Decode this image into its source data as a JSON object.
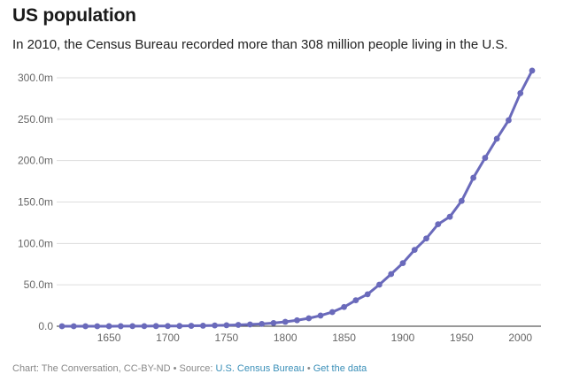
{
  "header": {
    "title": "US population",
    "subtitle": "In 2010, the Census Bureau recorded more than 308 million people living in the U.S."
  },
  "footer": {
    "chart_prefix": "Chart: The Conversation, CC-BY-ND",
    "source_prefix": "Source:",
    "source_link": "U.S. Census Bureau",
    "separator": "•",
    "data_link": "Get the data"
  },
  "colors": {
    "line": "#6a6abb",
    "grid": "#dddddd",
    "axis_text": "#666666",
    "link": "#3a8fb8"
  },
  "chart_data": {
    "type": "line",
    "title": "US population",
    "xlabel": "",
    "ylabel": "",
    "xlim": [
      1610,
      2010
    ],
    "ylim": [
      0,
      300
    ],
    "x_ticks": [
      1650,
      1700,
      1750,
      1800,
      1850,
      1900,
      1950,
      2000
    ],
    "y_ticks": [
      0,
      50,
      100,
      150,
      200,
      250,
      300
    ],
    "y_tick_labels": [
      "0.0",
      "50.0m",
      "100.0m",
      "150.0m",
      "200.0m",
      "250.0m",
      "300.0m"
    ],
    "grid": true,
    "legend": "none",
    "series": [
      {
        "x": [
          1610,
          1620,
          1630,
          1640,
          1650,
          1660,
          1670,
          1680,
          1690,
          1700,
          1710,
          1720,
          1730,
          1740,
          1750,
          1760,
          1770,
          1780,
          1790,
          1800,
          1810,
          1820,
          1830,
          1840,
          1850,
          1860,
          1870,
          1880,
          1890,
          1900,
          1910,
          1920,
          1930,
          1940,
          1950,
          1960,
          1970,
          1980,
          1990,
          2000,
          2010
        ],
        "values": [
          0.0004,
          0.002,
          0.005,
          0.027,
          0.05,
          0.075,
          0.112,
          0.152,
          0.21,
          0.25,
          0.33,
          0.47,
          0.63,
          0.91,
          1.17,
          1.59,
          2.15,
          2.78,
          3.9,
          5.3,
          7.2,
          9.6,
          12.9,
          17.1,
          23.2,
          31.4,
          38.6,
          50.2,
          63.0,
          76.2,
          92.2,
          106.0,
          123.2,
          132.2,
          151.3,
          179.3,
          203.3,
          226.5,
          248.7,
          281.4,
          308.7
        ]
      }
    ]
  }
}
